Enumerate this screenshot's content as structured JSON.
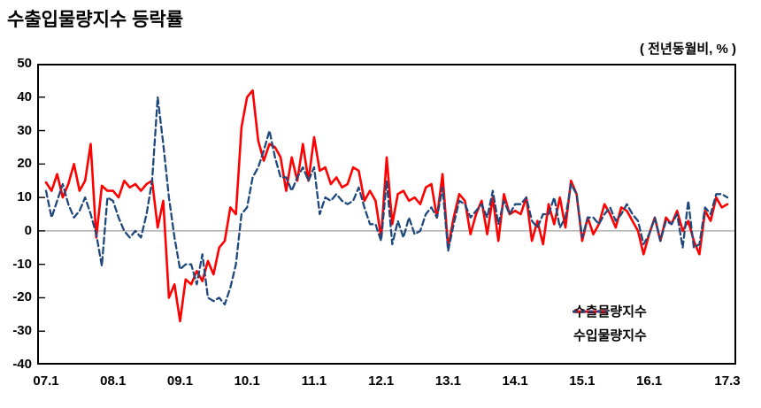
{
  "title": "수출입물량지수 등락률",
  "unit_note": "( 전년동월비, % )",
  "legend": {
    "position": "inside-lower-right",
    "items": [
      {
        "label": "수출물량지수",
        "color": "#ff0000",
        "line_style": "solid"
      },
      {
        "label": "수입물량지수",
        "color": "#1f497d",
        "line_style": "dashed"
      }
    ]
  },
  "chart_data": {
    "type": "line",
    "title": "수출입물량지수 등락률",
    "unit_label": "( 전년동월비, % )",
    "x_frequency": "monthly",
    "x_start": "07.1",
    "x_end": "17.3",
    "x_axis_tick_labels": [
      "07.1",
      "08.1",
      "09.1",
      "10.1",
      "11.1",
      "12.1",
      "13.1",
      "14.1",
      "15.1",
      "16.1",
      "17.3"
    ],
    "ylim": [
      -40,
      50
    ],
    "y_tick_step": 10,
    "y_axis_tick_labels": [
      "50",
      "40",
      "30",
      "20",
      "10",
      "0",
      "-10",
      "-20",
      "-30",
      "-40"
    ],
    "grid": "zero-line-only",
    "zero_line_color": "#a0a0a0",
    "axis_color": "#000000",
    "series": [
      {
        "name": "수출물량지수",
        "color": "#ff0000",
        "style": "solid",
        "values": [
          14.5,
          12,
          17,
          10,
          14,
          20,
          12,
          15,
          26,
          -2,
          13.5,
          12,
          12,
          10,
          15,
          13,
          14,
          12,
          14,
          15,
          1,
          9,
          -20,
          -16,
          -27,
          -14.5,
          -16,
          -12,
          -15,
          -9,
          -13,
          -5,
          -3,
          7,
          5,
          31,
          40,
          42,
          27,
          21,
          26,
          25,
          22,
          12,
          22,
          15,
          26,
          15,
          28,
          18,
          19,
          14,
          16,
          13,
          14,
          19,
          18,
          9,
          12,
          9,
          -2,
          22,
          2,
          11,
          12,
          9,
          10,
          8,
          13,
          14,
          4,
          17,
          -5,
          4,
          11,
          9,
          -1,
          5,
          9,
          -1,
          10,
          -3,
          11,
          5,
          6,
          5,
          10,
          -3,
          3,
          -4,
          8,
          2,
          10,
          1,
          15,
          11,
          -3,
          4,
          -1,
          2,
          8,
          5,
          1,
          7,
          6,
          3,
          0,
          -7,
          -1,
          4,
          -3,
          4,
          2,
          6,
          0,
          3,
          -3,
          -7,
          6,
          3,
          10,
          7,
          8
        ]
      },
      {
        "name": "수입물량지수",
        "color": "#1f497d",
        "style": "dashed",
        "values": [
          12,
          4,
          9,
          14,
          8,
          4,
          6,
          10,
          5,
          -1,
          -10.5,
          10,
          9,
          4,
          0,
          -2,
          0,
          -2,
          5,
          15,
          40,
          26,
          10,
          -2,
          -11.5,
          -10,
          -10,
          -16,
          -7,
          -20,
          -21,
          -20,
          -22,
          -17,
          -10,
          5,
          7,
          16,
          19,
          24,
          30,
          22,
          16,
          16,
          12,
          16,
          19,
          15,
          19,
          5,
          10,
          9,
          11,
          9,
          8,
          9,
          13,
          7,
          2,
          2,
          -3,
          15,
          -4,
          3,
          -2,
          4,
          -1,
          0,
          5,
          7,
          4,
          13,
          -6,
          2,
          9,
          8,
          4,
          6,
          8,
          4,
          12,
          2,
          9,
          5,
          8,
          8,
          10,
          3,
          1,
          5,
          5,
          10,
          1,
          4,
          14,
          11,
          -2,
          4,
          4,
          2,
          5,
          7,
          3,
          5,
          8,
          5,
          3,
          -4,
          -1,
          4,
          -3,
          3,
          2,
          5,
          -5,
          9,
          -5,
          -4,
          7,
          5,
          11,
          11,
          10
        ]
      }
    ]
  }
}
